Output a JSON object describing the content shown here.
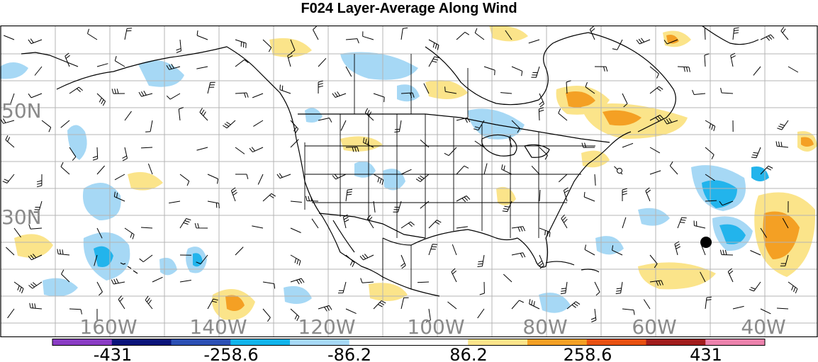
{
  "title": "F024 Layer-Average Along Wind",
  "map": {
    "lon_labels": [
      "160W",
      "140W",
      "120W",
      "100W",
      "80W",
      "60W",
      "40W"
    ],
    "lat_labels": [
      "50N",
      "30N"
    ],
    "station_marker": "filled-circle",
    "palette": {
      "neg_light": "#a6d8f5",
      "neg_mid": "#22b4ec",
      "pos_light": "#fbe48a",
      "pos_mid": "#f4a024",
      "pos_dark": "#e06a10"
    }
  },
  "colorbar": {
    "colors": [
      "#8a3cc4",
      "#0a137a",
      "#2b4fb4",
      "#10b4ec",
      "#a6d8f5",
      "#ffffff",
      "#ffffff",
      "#fbe48a",
      "#f4a024",
      "#e85010",
      "#a11c1c",
      "#ec82ac"
    ],
    "labels": [
      "-431",
      "-258.6",
      "-86.2",
      "86.2",
      "258.6",
      "431"
    ]
  }
}
